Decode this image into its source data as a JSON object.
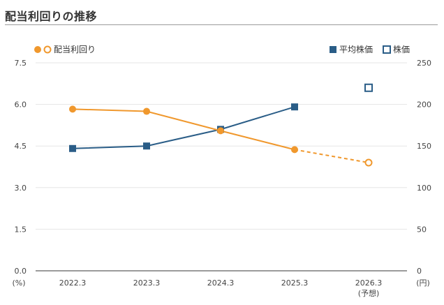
{
  "title": "配当利回りの推移",
  "chart_data": {
    "type": "line",
    "categories": [
      "2022.3",
      "2023.3",
      "2024.3",
      "2025.3",
      "2026.3"
    ],
    "category_sublabels": [
      "",
      "",
      "",
      "",
      "(予想)"
    ],
    "left_axis": {
      "unit": "(%)",
      "ylim": [
        0,
        7.5
      ],
      "ticks": [
        "0.0",
        "1.5",
        "3.0",
        "4.5",
        "6.0",
        "7.5"
      ]
    },
    "right_axis": {
      "unit": "(円)",
      "ylim": [
        0,
        250
      ],
      "ticks": [
        "0",
        "50",
        "100",
        "150",
        "200",
        "250"
      ]
    },
    "grid": true,
    "series": [
      {
        "name": "配当利回り",
        "axis": "left",
        "color": "#f0982d",
        "values": [
          5.83,
          5.75,
          5.05,
          4.37,
          3.9
        ],
        "forecast_from_index": 4
      },
      {
        "name": "平均株価",
        "axis": "right",
        "color": "#2a5d87",
        "values": [
          147,
          150,
          170,
          197,
          null
        ]
      },
      {
        "name": "株価",
        "axis": "right",
        "color": "#2a5d87",
        "values": [
          null,
          null,
          null,
          null,
          220
        ]
      }
    ],
    "legend": {
      "left": [
        {
          "label": "配当利回り",
          "marker": "circle-filled+circle-open"
        }
      ],
      "right": [
        {
          "label": "平均株価",
          "marker": "square-filled"
        },
        {
          "label": "株価",
          "marker": "square-open"
        }
      ]
    }
  }
}
